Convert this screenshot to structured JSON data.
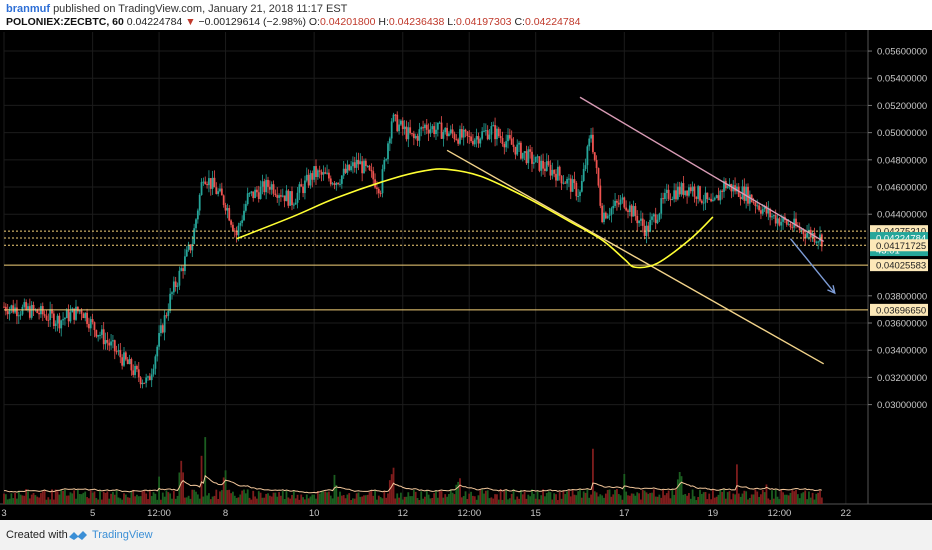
{
  "header": {
    "author": "branmuf",
    "published_text": "published on TradingView.com, January 21, 2018 11:17 EST",
    "symbol": "POLONIEX:ZECBTC, 60",
    "last_price": "0.04224784",
    "change_arrow": "▼",
    "change": "−0.00129614 (−2.98%)",
    "open_label": "O:",
    "open": "0.04201800",
    "high_label": "H:",
    "high": "0.04236438",
    "low_label": "L:",
    "low": "0.04197303",
    "close_label": "C:",
    "close": "0.04224784"
  },
  "footer": {
    "created_with": "Created with",
    "brand": "TradingView",
    "icon": "tradingview-logo-icon"
  },
  "colors": {
    "background": "#000000",
    "candle_up": "#26a69a",
    "candle_down": "#ef5350",
    "volume_up": "#1b5e20",
    "volume_down": "#7f1d1d",
    "curve": "#ffff33",
    "level_line": "#f5d27a",
    "channel_top": "#d89bb5",
    "channel_bottom": "#f2d38a",
    "projection": "#7d9cd6",
    "last_price_bg": "#26a69a",
    "volume_ma": "#f3c79b"
  },
  "chart_data": {
    "type": "candlestick",
    "symbol": "POLONIEX:ZECBTC",
    "interval": "60",
    "y_axis": {
      "ticks": [
        "0.05600000",
        "0.05400000",
        "0.05200000",
        "0.05000000",
        "0.04800000",
        "0.04600000",
        "0.04400000",
        "0.03800000",
        "0.03600000",
        "0.03400000",
        "0.03200000",
        "0.03000000"
      ],
      "ylim": [
        0.0285,
        0.0574
      ]
    },
    "x_axis": {
      "ticks": [
        "3",
        "5",
        "12:00",
        "8",
        "10",
        "12",
        "12:00",
        "15",
        "17",
        "19",
        "12:00",
        "22"
      ],
      "xlim": [
        "2018-01-03 00:00",
        "2018-01-22 12:00"
      ]
    },
    "price_labels": [
      {
        "value": "0.04275310",
        "style": "level"
      },
      {
        "value": "0.04224784",
        "style": "last"
      },
      {
        "value": "43:01",
        "style": "countdown"
      },
      {
        "value": "0.04171725",
        "style": "level"
      },
      {
        "value": "0.04025583",
        "style": "level"
      },
      {
        "value": "0.03696650",
        "style": "level"
      }
    ],
    "horizontal_levels": [
      0.0427531,
      0.04224784,
      0.04171725,
      0.04025583,
      0.0369665
    ],
    "trendlines": [
      {
        "role": "channel_top",
        "from": [
          "2018-01-16 00:00",
          0.0526
        ],
        "to": [
          "2018-01-21 12:00",
          0.042
        ]
      },
      {
        "role": "channel_bottom",
        "from": [
          "2018-01-13 00:00",
          0.0487
        ],
        "to": [
          "2018-01-21 12:00",
          0.033
        ]
      },
      {
        "role": "projection_arrow",
        "from": [
          "2018-01-20 18:00",
          0.0422
        ],
        "to": [
          "2018-01-21 18:00",
          0.0382
        ]
      }
    ],
    "curve_points": [
      [
        "2018-01-08 06:00",
        0.0422
      ],
      [
        "2018-01-09 12:00",
        0.0438
      ],
      [
        "2018-01-10 12:00",
        0.0452
      ],
      [
        "2018-01-11 18:00",
        0.0466
      ],
      [
        "2018-01-12 12:00",
        0.0472
      ],
      [
        "2018-01-13 00:00",
        0.0473
      ],
      [
        "2018-01-13 18:00",
        0.0468
      ],
      [
        "2018-01-14 18:00",
        0.0453
      ],
      [
        "2018-01-15 18:00",
        0.0435
      ],
      [
        "2018-01-16 12:00",
        0.0421
      ],
      [
        "2018-01-17 00:00",
        0.0407
      ],
      [
        "2018-01-17 06:00",
        0.0401
      ],
      [
        "2018-01-17 18:00",
        0.0404
      ],
      [
        "2018-01-18 12:00",
        0.0422
      ],
      [
        "2018-01-19 00:00",
        0.0438
      ]
    ],
    "price_path": [
      [
        "2018-01-03 00:00",
        0.0372
      ],
      [
        "2018-01-03 18:00",
        0.0368
      ],
      [
        "2018-01-04 06:00",
        0.0362
      ],
      [
        "2018-01-04 18:00",
        0.037
      ],
      [
        "2018-01-05 00:00",
        0.0358
      ],
      [
        "2018-01-05 12:00",
        0.034
      ],
      [
        "2018-01-06 00:00",
        0.0322
      ],
      [
        "2018-01-06 06:00",
        0.0316
      ],
      [
        "2018-01-06 12:00",
        0.0348
      ],
      [
        "2018-01-06 18:00",
        0.0378
      ],
      [
        "2018-01-07 06:00",
        0.042
      ],
      [
        "2018-01-07 12:00",
        0.047
      ],
      [
        "2018-01-08 00:00",
        0.0448
      ],
      [
        "2018-01-08 06:00",
        0.0425
      ],
      [
        "2018-01-08 12:00",
        0.0452
      ],
      [
        "2018-01-09 00:00",
        0.0462
      ],
      [
        "2018-01-09 12:00",
        0.045
      ],
      [
        "2018-01-10 00:00",
        0.047
      ],
      [
        "2018-01-10 12:00",
        0.0465
      ],
      [
        "2018-01-11 00:00",
        0.0478
      ],
      [
        "2018-01-11 12:00",
        0.046
      ],
      [
        "2018-01-11 18:00",
        0.051
      ],
      [
        "2018-01-12 06:00",
        0.0495
      ],
      [
        "2018-01-12 12:00",
        0.0505
      ],
      [
        "2018-01-13 00:00",
        0.05
      ],
      [
        "2018-01-13 12:00",
        0.0495
      ],
      [
        "2018-01-14 00:00",
        0.0502
      ],
      [
        "2018-01-14 12:00",
        0.049
      ],
      [
        "2018-01-15 00:00",
        0.0478
      ],
      [
        "2018-01-15 12:00",
        0.047
      ],
      [
        "2018-01-16 00:00",
        0.0455
      ],
      [
        "2018-01-16 06:00",
        0.05
      ],
      [
        "2018-01-16 12:00",
        0.044
      ],
      [
        "2018-01-17 00:00",
        0.045
      ],
      [
        "2018-01-17 12:00",
        0.0428
      ],
      [
        "2018-01-18 00:00",
        0.0455
      ],
      [
        "2018-01-18 12:00",
        0.046
      ],
      [
        "2018-01-19 00:00",
        0.0445
      ],
      [
        "2018-01-19 06:00",
        0.0462
      ],
      [
        "2018-01-19 18:00",
        0.0455
      ],
      [
        "2018-01-20 06:00",
        0.044
      ],
      [
        "2018-01-20 18:00",
        0.0432
      ],
      [
        "2018-01-21 06:00",
        0.0425
      ],
      [
        "2018-01-21 11:00",
        0.0422
      ]
    ],
    "volume_spikes": [
      [
        "2018-01-06 12:00",
        0.45
      ],
      [
        "2018-01-07 00:00",
        0.6
      ],
      [
        "2018-01-07 12:00",
        0.85
      ],
      [
        "2018-01-08 00:00",
        0.5
      ],
      [
        "2018-01-10 12:00",
        0.4
      ],
      [
        "2018-01-11 18:00",
        0.5
      ],
      [
        "2018-01-13 06:00",
        0.35
      ],
      [
        "2018-01-16 06:00",
        0.7
      ],
      [
        "2018-01-17 00:00",
        0.6
      ],
      [
        "2018-01-18 06:00",
        0.5
      ],
      [
        "2018-01-19 12:00",
        0.55
      ],
      [
        "2018-01-20 06:00",
        0.35
      ]
    ]
  }
}
